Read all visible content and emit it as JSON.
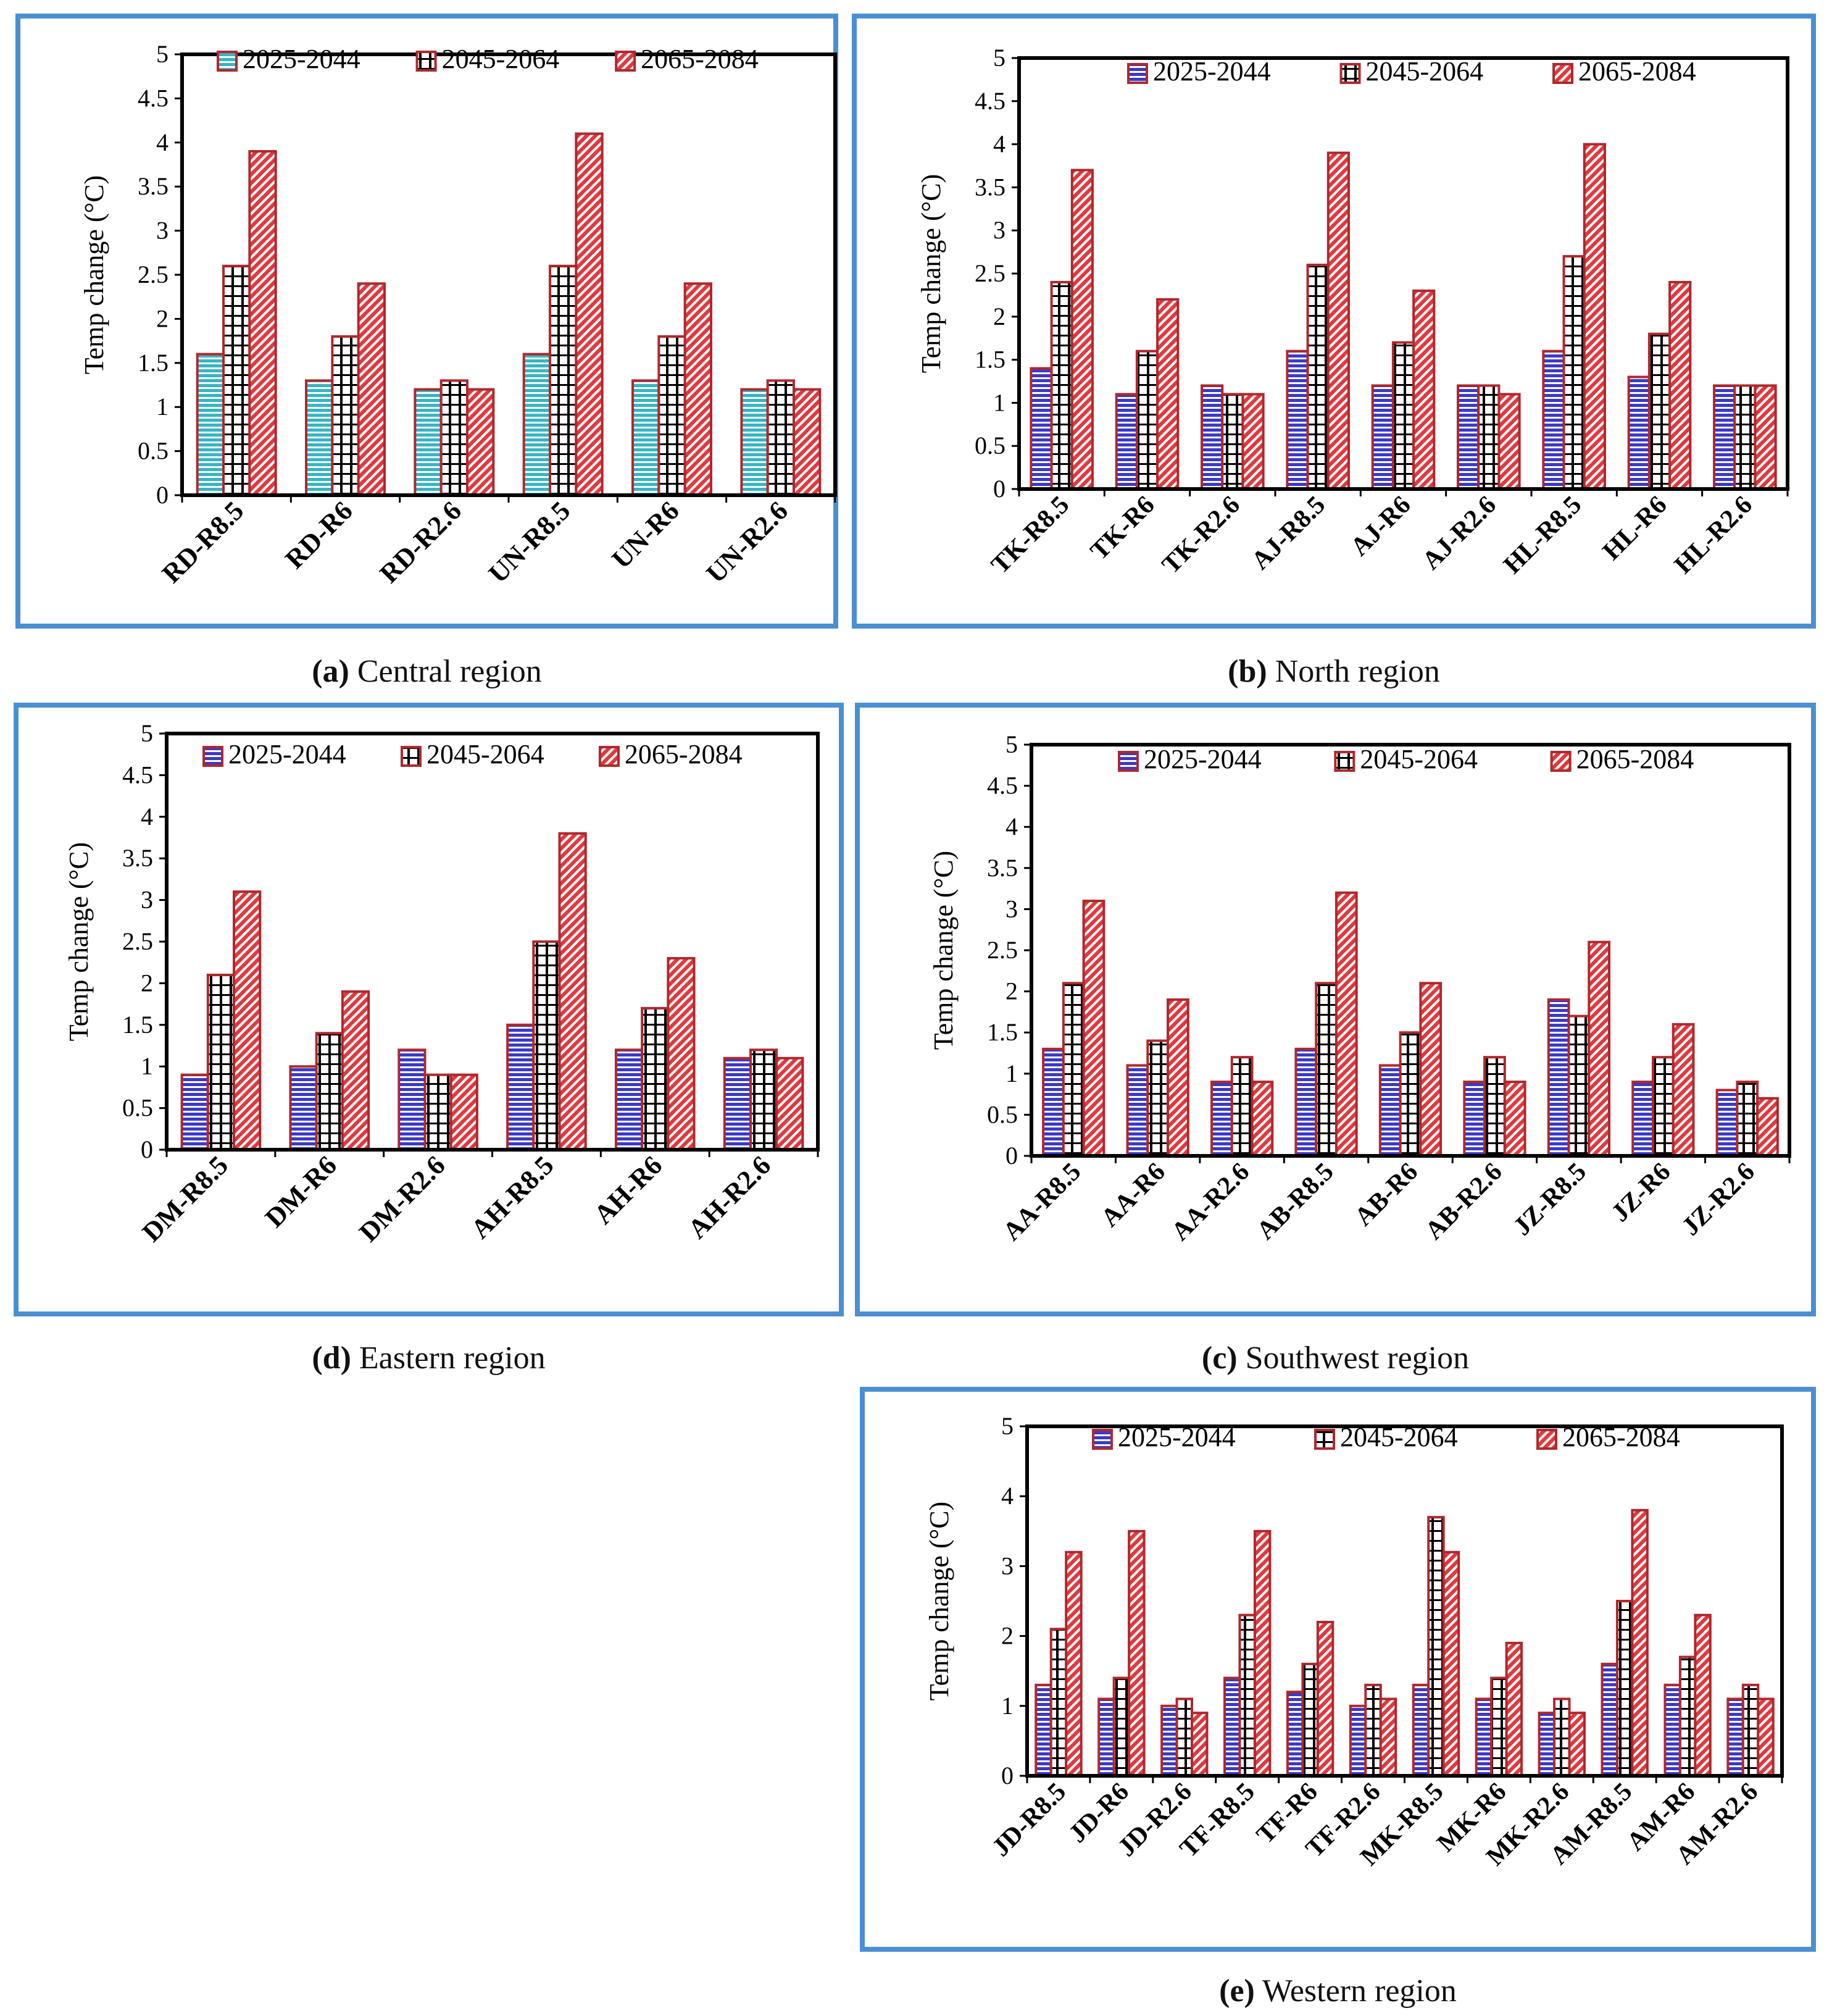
{
  "figure": {
    "colors": {
      "border": "#4a8fd1",
      "bar_red": "#e0393e",
      "bar_red_dark": "#b0282c",
      "bar_blue": "#3a3ac8",
      "bar_teal": "#36b5c4",
      "bar_black": "#000000"
    },
    "legend_swatch_icons": [
      "blue-hatch-swatch-icon",
      "black-grid-swatch-icon",
      "red-diagonal-swatch-icon"
    ]
  },
  "chart_data": [
    {
      "id": "a",
      "type": "bar",
      "caption_letter": "(a)",
      "caption_text": " Central region",
      "ylabel": "Temp change (°C)",
      "ylim": [
        0,
        5
      ],
      "yticks": [
        "0",
        "0.5",
        "1",
        "1.5",
        "2",
        "2.5",
        "3",
        "3.5",
        "4",
        "4.5",
        "5"
      ],
      "categories": [
        "RD-R8.5",
        "RD-R6",
        "RD-R2.6",
        "UN-R8.5",
        "UN-R6",
        "UN-R2.6"
      ],
      "first_series_style": "teal",
      "series": [
        {
          "name": "2025-2044",
          "values": [
            1.6,
            1.3,
            1.2,
            1.6,
            1.3,
            1.2
          ]
        },
        {
          "name": "2045-2064",
          "values": [
            2.6,
            1.8,
            1.3,
            2.6,
            1.8,
            1.3
          ]
        },
        {
          "name": "2065-2084",
          "values": [
            3.9,
            2.4,
            1.2,
            4.1,
            2.4,
            1.2
          ]
        }
      ]
    },
    {
      "id": "b",
      "type": "bar",
      "caption_letter": "(b)",
      "caption_text": " North region",
      "ylabel": "Temp change (°C)",
      "ylim": [
        0,
        5
      ],
      "yticks": [
        "0",
        "0.5",
        "1",
        "1.5",
        "2",
        "2.5",
        "3",
        "3.5",
        "4",
        "4.5",
        "5"
      ],
      "categories": [
        "TK-R8.5",
        "TK-R6",
        "TK-R2.6",
        "AJ-R8.5",
        "AJ-R6",
        "AJ-R2.6",
        "HL-R8.5",
        "HL-R6",
        "HL-R2.6"
      ],
      "first_series_style": "blue",
      "series": [
        {
          "name": "2025-2044",
          "values": [
            1.4,
            1.1,
            1.2,
            1.6,
            1.2,
            1.2,
            1.6,
            1.3,
            1.2
          ]
        },
        {
          "name": "2045-2064",
          "values": [
            2.4,
            1.6,
            1.1,
            2.6,
            1.7,
            1.2,
            2.7,
            1.8,
            1.2
          ]
        },
        {
          "name": "2065-2084",
          "values": [
            3.7,
            2.2,
            1.1,
            3.9,
            2.3,
            1.1,
            4.0,
            2.4,
            1.2
          ]
        }
      ]
    },
    {
      "id": "d",
      "type": "bar",
      "caption_letter": "(d)",
      "caption_text": " Eastern region",
      "ylabel": "Temp change (°C)",
      "ylim": [
        0,
        5
      ],
      "yticks": [
        "0",
        "0.5",
        "1",
        "1.5",
        "2",
        "2.5",
        "3",
        "3.5",
        "4",
        "4.5",
        "5"
      ],
      "categories": [
        "DM-R8.5",
        "DM-R6",
        "DM-R2.6",
        "AH-R8.5",
        "AH-R6",
        "AH-R2.6"
      ],
      "first_series_style": "blue",
      "series": [
        {
          "name": "2025-2044",
          "values": [
            0.9,
            1.0,
            1.2,
            1.5,
            1.2,
            1.1
          ]
        },
        {
          "name": "2045-2064",
          "values": [
            2.1,
            1.4,
            0.9,
            2.5,
            1.7,
            1.2
          ]
        },
        {
          "name": "2065-2084",
          "values": [
            3.1,
            1.9,
            0.9,
            3.8,
            2.3,
            1.1
          ]
        }
      ]
    },
    {
      "id": "c",
      "type": "bar",
      "caption_letter": "(c)",
      "caption_text": " Southwest region",
      "ylabel": "Temp change (°C)",
      "ylim": [
        0,
        5
      ],
      "yticks": [
        "0",
        "0.5",
        "1",
        "1.5",
        "2",
        "2.5",
        "3",
        "3.5",
        "4",
        "4.5",
        "5"
      ],
      "categories": [
        "AA-R8.5",
        "AA-R6",
        "AA-R2.6",
        "AB-R8.5",
        "AB-R6",
        "AB-R2.6",
        "JZ-R8.5",
        "JZ-R6",
        "JZ-R2.6"
      ],
      "first_series_style": "blue",
      "series": [
        {
          "name": "2025-2044",
          "values": [
            1.3,
            1.1,
            0.9,
            1.3,
            1.1,
            0.9,
            1.9,
            0.9,
            0.8
          ]
        },
        {
          "name": "2045-2064",
          "values": [
            2.1,
            1.4,
            1.2,
            2.1,
            1.5,
            1.2,
            1.7,
            1.2,
            0.9
          ]
        },
        {
          "name": "2065-2084",
          "values": [
            3.1,
            1.9,
            0.9,
            3.2,
            2.1,
            0.9,
            2.6,
            1.6,
            0.7
          ]
        }
      ]
    },
    {
      "id": "e",
      "type": "bar",
      "caption_letter": "(e)",
      "caption_text": " Western region",
      "ylabel": "Temp change (°C)",
      "ylim": [
        0,
        5
      ],
      "yticks": [
        "0",
        "1",
        "2",
        "3",
        "4",
        "5"
      ],
      "categories": [
        "JD-R8.5",
        "JD-R6",
        "JD-R2.6",
        "TF-R8.5",
        "TF-R6",
        "TF-R2.6",
        "MK-R8.5",
        "MK-R6",
        "MK-R2.6",
        "AM-R8.5",
        "AM-R6",
        "AM-R2.6"
      ],
      "first_series_style": "blue",
      "series": [
        {
          "name": "2025-2044",
          "values": [
            1.3,
            1.1,
            1.0,
            1.4,
            1.2,
            1.0,
            1.3,
            1.1,
            0.9,
            1.6,
            1.3,
            1.1
          ]
        },
        {
          "name": "2045-2064",
          "values": [
            2.1,
            1.4,
            1.1,
            2.3,
            1.6,
            1.3,
            3.7,
            1.4,
            1.1,
            2.5,
            1.7,
            1.3
          ]
        },
        {
          "name": "2065-2084",
          "values": [
            3.2,
            3.5,
            0.9,
            3.5,
            2.2,
            1.1,
            3.2,
            1.9,
            0.9,
            3.8,
            2.3,
            1.1
          ]
        }
      ]
    }
  ]
}
